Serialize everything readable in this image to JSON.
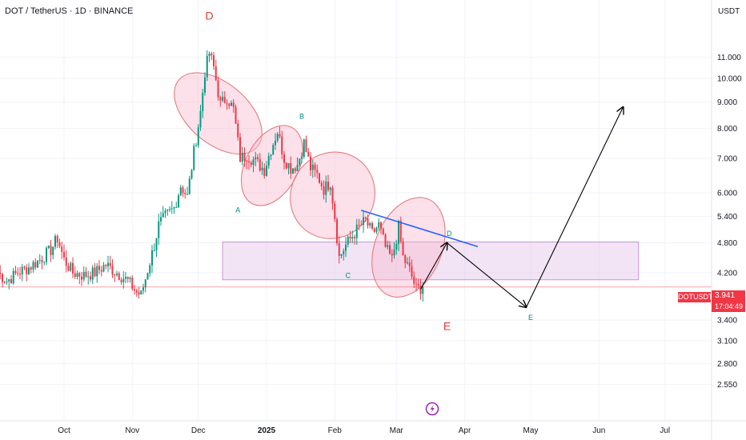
{
  "header": {
    "title": "DOT / TetherUS · 1D · BINANCE",
    "currency": "USDT"
  },
  "chart_data": {
    "type": "candlestick",
    "symbol": "DOTUSDT",
    "interval": "1D",
    "exchange": "BINANCE",
    "y_scale": "log",
    "ylim": [
      2.4,
      13.5
    ],
    "y_ticks": [
      "11.000",
      "10.000",
      "9.000",
      "8.000",
      "7.000",
      "6.000",
      "5.400",
      "4.800",
      "4.200",
      "3.400",
      "3.100",
      "2.800",
      "2.550"
    ],
    "x_ticks": [
      "Oct",
      "Nov",
      "Dec",
      "2025",
      "Feb",
      "Mar",
      "Apr",
      "May",
      "Jun",
      "Jul"
    ],
    "last_price": "3.941",
    "last_price_symbol": "DOTUSDT",
    "countdown": "17:04:49",
    "colors": {
      "up": "#089981",
      "down": "#f23645",
      "zone": "#e1bee7",
      "trend": "#2962ff",
      "ellipse": "#f8bbd0"
    },
    "ohlc_anchors": [
      {
        "date": "2024-09-01",
        "close": 4.2
      },
      {
        "date": "2024-09-05",
        "close": 4.05
      },
      {
        "date": "2024-09-10",
        "close": 4.2
      },
      {
        "date": "2024-09-15",
        "close": 4.3
      },
      {
        "date": "2024-09-20",
        "close": 4.45
      },
      {
        "date": "2024-09-25",
        "close": 4.65
      },
      {
        "date": "2024-09-28",
        "close": 4.9
      },
      {
        "date": "2024-10-01",
        "close": 4.45
      },
      {
        "date": "2024-10-05",
        "close": 4.2
      },
      {
        "date": "2024-10-10",
        "close": 4.15
      },
      {
        "date": "2024-10-15",
        "close": 4.2
      },
      {
        "date": "2024-10-20",
        "close": 4.35
      },
      {
        "date": "2024-10-25",
        "close": 4.2
      },
      {
        "date": "2024-10-30",
        "close": 4.05
      },
      {
        "date": "2024-11-03",
        "close": 3.85
      },
      {
        "date": "2024-11-05",
        "close": 3.8
      },
      {
        "date": "2024-11-08",
        "close": 4.25
      },
      {
        "date": "2024-11-11",
        "close": 4.75
      },
      {
        "date": "2024-11-13",
        "close": 5.2
      },
      {
        "date": "2024-11-16",
        "close": 5.4
      },
      {
        "date": "2024-11-20",
        "close": 5.6
      },
      {
        "date": "2024-11-23",
        "close": 6.2
      },
      {
        "date": "2024-11-26",
        "close": 5.9
      },
      {
        "date": "2024-11-29",
        "close": 7.2
      },
      {
        "date": "2024-12-02",
        "close": 8.6
      },
      {
        "date": "2024-12-04",
        "close": 10.3
      },
      {
        "date": "2024-12-06",
        "close": 11.2
      },
      {
        "date": "2024-12-08",
        "close": 10.5
      },
      {
        "date": "2024-12-11",
        "close": 8.9
      },
      {
        "date": "2024-12-14",
        "close": 9.2
      },
      {
        "date": "2024-12-17",
        "close": 8.7
      },
      {
        "date": "2024-12-20",
        "close": 7.0
      },
      {
        "date": "2024-12-23",
        "close": 7.1
      },
      {
        "date": "2024-12-27",
        "close": 6.9
      },
      {
        "date": "2024-12-31",
        "close": 6.65
      },
      {
        "date": "2025-01-03",
        "close": 7.3
      },
      {
        "date": "2025-01-06",
        "close": 7.9
      },
      {
        "date": "2025-01-09",
        "close": 7.0
      },
      {
        "date": "2025-01-12",
        "close": 6.7
      },
      {
        "date": "2025-01-15",
        "close": 6.8
      },
      {
        "date": "2025-01-18",
        "close": 7.5
      },
      {
        "date": "2025-01-21",
        "close": 6.7
      },
      {
        "date": "2025-01-24",
        "close": 6.5
      },
      {
        "date": "2025-01-27",
        "close": 6.1
      },
      {
        "date": "2025-01-30",
        "close": 6.3
      },
      {
        "date": "2025-02-01",
        "close": 5.4
      },
      {
        "date": "2025-02-03",
        "close": 4.5
      },
      {
        "date": "2025-02-06",
        "close": 4.75
      },
      {
        "date": "2025-02-09",
        "close": 4.95
      },
      {
        "date": "2025-02-12",
        "close": 5.15
      },
      {
        "date": "2025-02-15",
        "close": 5.3
      },
      {
        "date": "2025-02-18",
        "close": 5.0
      },
      {
        "date": "2025-02-21",
        "close": 5.2
      },
      {
        "date": "2025-02-24",
        "close": 4.7
      },
      {
        "date": "2025-02-27",
        "close": 4.45
      },
      {
        "date": "2025-03-02",
        "close": 5.15
      },
      {
        "date": "2025-03-04",
        "close": 4.5
      },
      {
        "date": "2025-03-07",
        "close": 4.25
      },
      {
        "date": "2025-03-10",
        "close": 3.9
      },
      {
        "date": "2025-03-13",
        "close": 3.94
      }
    ],
    "annotations": {
      "wave_labels": [
        {
          "text": "D",
          "date": "2024-12-06",
          "price": 13.0,
          "color": "#e53935",
          "size": "large"
        },
        {
          "text": "A",
          "date": "2024-12-19",
          "price": 5.5,
          "color": "#00897b",
          "size": "small"
        },
        {
          "text": "B",
          "date": "2025-01-17",
          "price": 8.35,
          "color": "#00897b",
          "size": "small"
        },
        {
          "text": "C",
          "date": "2025-02-07",
          "price": 4.1,
          "color": "#00897b",
          "size": "small"
        },
        {
          "text": "D",
          "date": "2025-03-25",
          "price": 4.95,
          "color": "#00897b",
          "size": "small"
        },
        {
          "text": "E",
          "date": "2025-03-24",
          "price": 3.25,
          "color": "#e53935",
          "size": "large"
        },
        {
          "text": "E",
          "date": "2025-05-01",
          "price": 3.4,
          "color": "#00897b",
          "size": "small"
        }
      ],
      "zone": {
        "from": "2024-12-12",
        "to": "2025-06-19",
        "low": 4.07,
        "high": 4.82
      },
      "trendline": [
        {
          "date": "2025-02-13",
          "price": 5.55
        },
        {
          "date": "2025-04-07",
          "price": 4.72
        }
      ],
      "projection_path": [
        {
          "date": "2025-03-12",
          "price": 3.9
        },
        {
          "date": "2025-03-24",
          "price": 4.8
        },
        {
          "date": "2025-04-29",
          "price": 3.6
        },
        {
          "date": "2025-06-12",
          "price": 8.8
        }
      ],
      "ellipses": [
        {
          "from": "2024-11-29",
          "to": "2024-12-21",
          "low": 5.9,
          "high": 12.4
        },
        {
          "from": "2024-12-18",
          "to": "2025-01-20",
          "low": 5.6,
          "high": 8.2
        },
        {
          "from": "2025-01-14",
          "to": "2025-02-17",
          "low": 4.4,
          "high": 8.0
        },
        {
          "from": "2025-02-10",
          "to": "2025-03-31",
          "low": 3.85,
          "high": 5.75
        }
      ]
    }
  }
}
